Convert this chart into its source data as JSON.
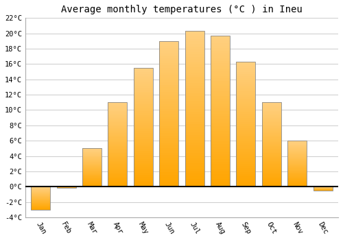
{
  "months": [
    "Jan",
    "Feb",
    "Mar",
    "Apr",
    "May",
    "Jun",
    "Jul",
    "Aug",
    "Sep",
    "Oct",
    "Nov",
    "Dec"
  ],
  "temperatures": [
    -3.0,
    -0.2,
    5.0,
    11.0,
    15.5,
    19.0,
    20.3,
    19.7,
    16.3,
    11.0,
    6.0,
    -0.5
  ],
  "title": "Average monthly temperatures (°C ) in Ineu",
  "bar_color_light": "#FFD080",
  "bar_color_dark": "#FFA500",
  "bar_edge_color": "#888888",
  "ylim": [
    -4,
    22
  ],
  "yticks": [
    -4,
    -2,
    0,
    2,
    4,
    6,
    8,
    10,
    12,
    14,
    16,
    18,
    20,
    22
  ],
  "bg_color": "#ffffff",
  "grid_color": "#cccccc",
  "zero_line_color": "#000000",
  "title_fontsize": 10,
  "tick_fontsize": 7.5
}
